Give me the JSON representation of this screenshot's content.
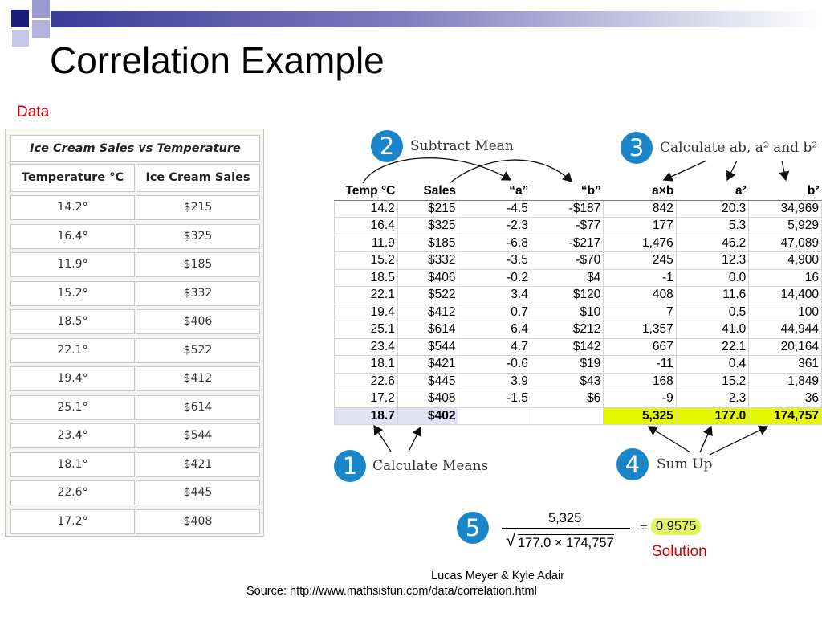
{
  "slide": {
    "title": "Correlation Example",
    "data_label": "Data",
    "footer_author": "Lucas Meyer & Kyle Adair",
    "footer_source": "Source: http://www.mathsisfun.com/data/correlation.html"
  },
  "left_table": {
    "caption": "Ice Cream Sales vs Temperature",
    "headers": [
      "Temperature °C",
      "Ice Cream Sales"
    ],
    "rows": [
      [
        "14.2°",
        "$215"
      ],
      [
        "16.4°",
        "$325"
      ],
      [
        "11.9°",
        "$185"
      ],
      [
        "15.2°",
        "$332"
      ],
      [
        "18.5°",
        "$406"
      ],
      [
        "22.1°",
        "$522"
      ],
      [
        "19.4°",
        "$412"
      ],
      [
        "25.1°",
        "$614"
      ],
      [
        "23.4°",
        "$544"
      ],
      [
        "18.1°",
        "$421"
      ],
      [
        "22.6°",
        "$445"
      ],
      [
        "17.2°",
        "$408"
      ]
    ]
  },
  "calc_table": {
    "headers": [
      "Temp °C",
      "Sales",
      "“a”",
      "“b”",
      "a×b",
      "a²",
      "b²"
    ],
    "rows": [
      [
        "14.2",
        "$215",
        "-4.5",
        "-$187",
        "842",
        "20.3",
        "34,969"
      ],
      [
        "16.4",
        "$325",
        "-2.3",
        "-$77",
        "177",
        "5.3",
        "5,929"
      ],
      [
        "11.9",
        "$185",
        "-6.8",
        "-$217",
        "1,476",
        "46.2",
        "47,089"
      ],
      [
        "15.2",
        "$332",
        "-3.5",
        "-$70",
        "245",
        "12.3",
        "4,900"
      ],
      [
        "18.5",
        "$406",
        "-0.2",
        "$4",
        "-1",
        "0.0",
        "16"
      ],
      [
        "22.1",
        "$522",
        "3.4",
        "$120",
        "408",
        "11.6",
        "14,400"
      ],
      [
        "19.4",
        "$412",
        "0.7",
        "$10",
        "7",
        "0.5",
        "100"
      ],
      [
        "25.1",
        "$614",
        "6.4",
        "$212",
        "1,357",
        "41.0",
        "44,944"
      ],
      [
        "23.4",
        "$544",
        "4.7",
        "$142",
        "667",
        "22.1",
        "20,164"
      ],
      [
        "18.1",
        "$421",
        "-0.6",
        "$19",
        "-11",
        "0.4",
        "361"
      ],
      [
        "22.6",
        "$445",
        "3.9",
        "$43",
        "168",
        "15.2",
        "1,849"
      ],
      [
        "17.2",
        "$408",
        "-1.5",
        "$6",
        "-9",
        "2.3",
        "36"
      ]
    ],
    "totals": [
      "18.7",
      "$402",
      "",
      "",
      "5,325",
      "177.0",
      "174,757"
    ]
  },
  "steps": [
    {
      "num": "1",
      "label": "Calculate Means"
    },
    {
      "num": "2",
      "label": "Subtract Mean"
    },
    {
      "num": "3",
      "label": "Calculate ab, a² and b²"
    },
    {
      "num": "4",
      "label": "Sum Up"
    },
    {
      "num": "5",
      "label": ""
    }
  ],
  "formula": {
    "numerator": "5,325",
    "denominator": "177.0 × 174,757",
    "equals": "=",
    "result": "0.9575",
    "solution_label": "Solution"
  },
  "colors": {
    "accent_red": "#cc0000",
    "step_blue": "#1a86c9",
    "highlight_yellow": "#e6f800",
    "mean_lavender": "#e2e2f6"
  }
}
